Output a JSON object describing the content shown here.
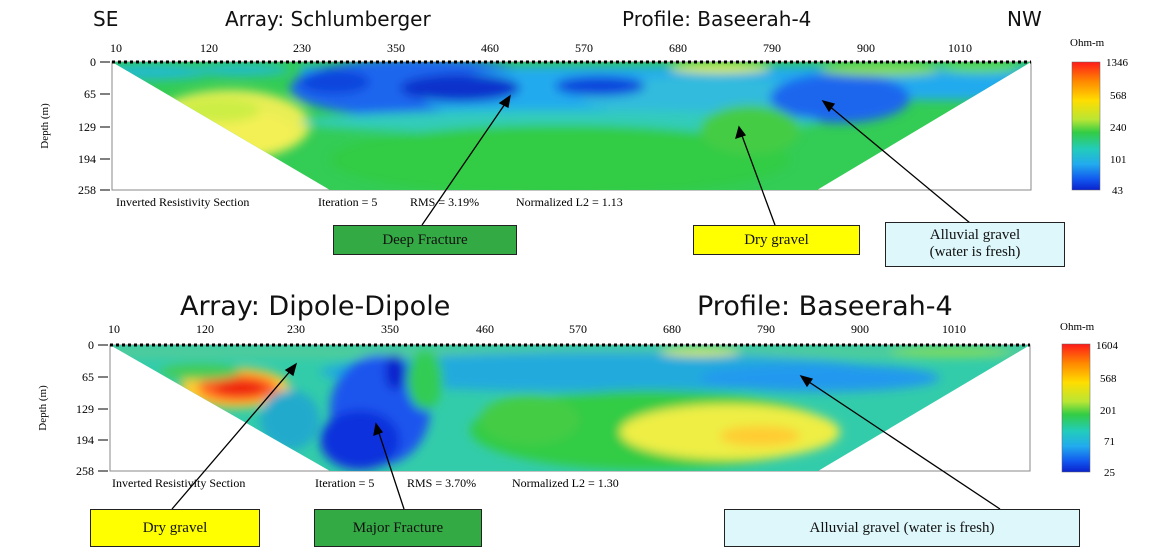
{
  "top": {
    "left_dir": "SE",
    "right_dir": "NW",
    "array": "Array: Schlumberger",
    "profile": "Profile: Baseerah-4",
    "x_ticks": [
      "10",
      "120",
      "230",
      "350",
      "460",
      "570",
      "680",
      "790",
      "900",
      "1010"
    ],
    "depth_ticks": [
      "0",
      "65",
      "129",
      "194",
      "258"
    ],
    "depth_label": "Depth (m)",
    "legend_unit": "Ohm-m",
    "legend_values": [
      "1346",
      "568",
      "240",
      "101",
      "43"
    ],
    "footer_section": "Inverted Resistivity Section",
    "footer_iteration": "Iteration = 5",
    "footer_rms": "RMS = 3.19%",
    "footer_norm": "Normalized L2 = 1.13",
    "labels": {
      "deep_fracture": "Deep Fracture",
      "dry_gravel": "Dry gravel",
      "alluvial_line1": "Alluvial  gravel",
      "alluvial_line2": "(water is fresh)"
    }
  },
  "bottom": {
    "array": "Array: Dipole-Dipole",
    "profile": "Profile: Baseerah-4",
    "x_ticks": [
      "10",
      "120",
      "230",
      "350",
      "460",
      "570",
      "680",
      "790",
      "900",
      "1010"
    ],
    "depth_ticks": [
      "0",
      "65",
      "129",
      "194",
      "258"
    ],
    "depth_label": "Depth (m)",
    "legend_unit": "Ohm-m",
    "legend_values": [
      "1604",
      "568",
      "201",
      "71",
      "25"
    ],
    "footer_section": "Inverted Resistivity Section",
    "footer_iteration": "Iteration = 5",
    "footer_rms": "RMS = 3.70%",
    "footer_norm": "Normalized L2 = 1.30",
    "labels": {
      "dry_gravel": "Dry gravel",
      "major_fracture": "Major Fracture",
      "alluvial": "Alluvial  gravel (water is fresh)"
    }
  },
  "colors": {
    "label_green": "#33aa44",
    "label_yellow": "#ffff00",
    "label_cyan": "#ddf7fb"
  }
}
